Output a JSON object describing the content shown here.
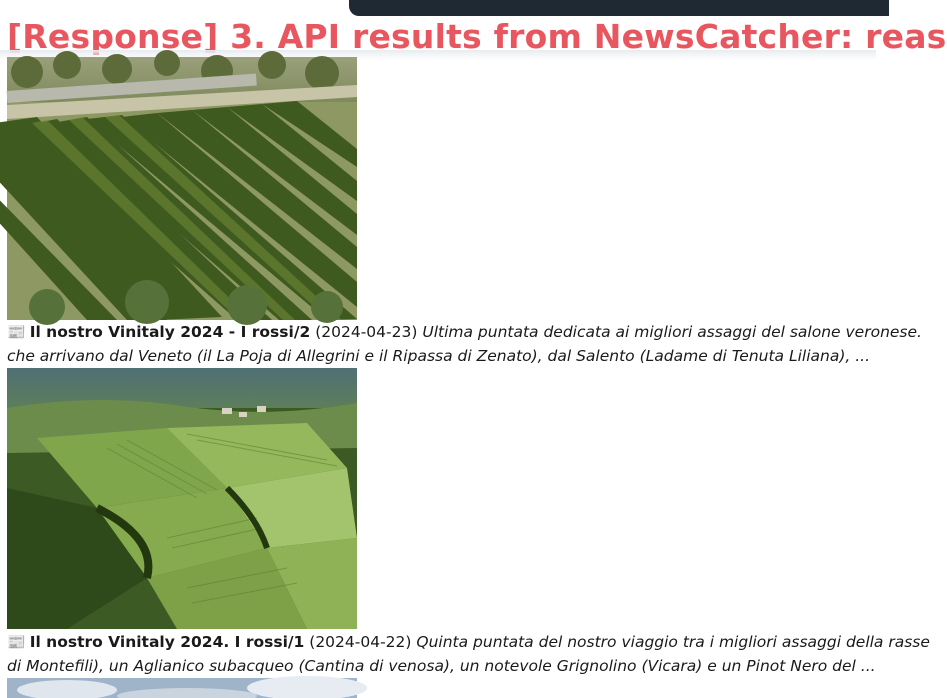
{
  "heading": "[Response] 3. API results from NewsCatcher: reas",
  "articles": [
    {
      "icon": "newspaper-icon",
      "icon_glyph": "📰",
      "title": "Il nostro Vinitaly 2024 - I rossi/2",
      "date": "(2024-04-23)",
      "desc_line1": "Ultima puntata dedicata ai migliori assaggi del salone veronese.",
      "desc_line2": "che arrivano dal Veneto (il La Poja di Allegrini e il Ripassa di Zenato), dal Salento (Ladame di Tenuta Liliana), ..."
    },
    {
      "icon": "newspaper-icon",
      "icon_glyph": "📰",
      "title": "Il nostro Vinitaly 2024. I rossi/1",
      "date": "(2024-04-22)",
      "desc_line1": "Quinta puntata del nostro viaggio tra i migliori assaggi della rasse",
      "desc_line2": "di Montefili), un Aglianico subacqueo (Cantina di venosa), un notevole Grignolino (Vicara) e un Pinot Nero del ..."
    }
  ]
}
